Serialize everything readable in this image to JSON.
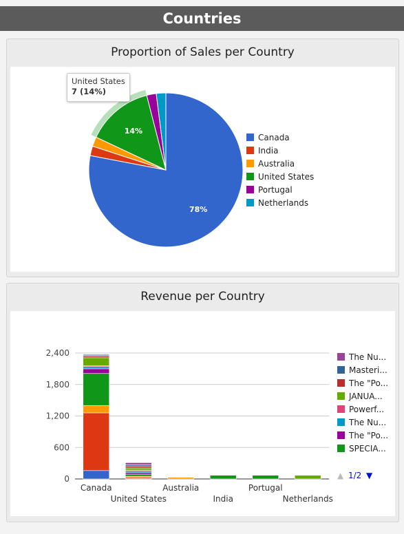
{
  "header": {
    "title": "Countries"
  },
  "sales_panel": {
    "title": "Proportion of Sales per Country",
    "tooltip": {
      "line1": "United States",
      "line2": "7 (14%)"
    }
  },
  "revenue_panel": {
    "title": "Revenue per Country",
    "legend_pager": {
      "up": "▲",
      "label": "1/2",
      "down": "▼"
    }
  },
  "chart_data": [
    {
      "type": "pie",
      "title": "Proportion of Sales per Country",
      "categories": [
        "Canada",
        "India",
        "Australia",
        "United States",
        "Portugal",
        "Netherlands"
      ],
      "values": [
        78,
        2,
        2,
        14,
        2,
        2
      ],
      "data_labels": [
        "78%",
        "",
        "",
        "14%",
        "",
        ""
      ],
      "colors": [
        "#3366cc",
        "#dc3912",
        "#ff9900",
        "#109618",
        "#990099",
        "#0099c6"
      ],
      "legend": "right",
      "highlighted": "United States"
    },
    {
      "type": "bar",
      "stacked": true,
      "title": "Revenue per Country",
      "categories": [
        "Canada",
        "United States",
        "Australia",
        "India",
        "Portugal",
        "Netherlands"
      ],
      "ylim": [
        0,
        2400
      ],
      "yticks": [
        {
          "value": 0,
          "label": "0"
        },
        {
          "value": 600,
          "label": "600"
        },
        {
          "value": 1200,
          "label": "1,200"
        },
        {
          "value": 1800,
          "label": "1,800"
        },
        {
          "value": 2400,
          "label": "2,400"
        }
      ],
      "grid": true,
      "legend": "right",
      "legend_entries": [
        {
          "label": "The Nu...",
          "color": "#994499"
        },
        {
          "label": "Masteri...",
          "color": "#316395"
        },
        {
          "label": "The \"Po...",
          "color": "#b82e2e"
        },
        {
          "label": "JANUA...",
          "color": "#66aa00"
        },
        {
          "label": "Powerf...",
          "color": "#dd4477"
        },
        {
          "label": "The Nu...",
          "color": "#0099c6"
        },
        {
          "label": "The \"Po...",
          "color": "#990099"
        },
        {
          "label": "SPECIA...",
          "color": "#109618"
        }
      ],
      "series": [
        {
          "color": "#3366cc",
          "values": [
            160,
            10,
            0,
            0,
            0,
            0
          ]
        },
        {
          "color": "#dc3912",
          "values": [
            1100,
            20,
            0,
            0,
            0,
            0
          ]
        },
        {
          "color": "#ff9900",
          "values": [
            140,
            20,
            30,
            0,
            0,
            0
          ]
        },
        {
          "color": "#109618",
          "values": [
            610,
            40,
            0,
            70,
            70,
            0
          ]
        },
        {
          "color": "#990099",
          "values": [
            90,
            30,
            0,
            0,
            0,
            0
          ]
        },
        {
          "color": "#0099c6",
          "values": [
            40,
            30,
            0,
            0,
            0,
            0
          ]
        },
        {
          "color": "#dd4477",
          "values": [
            20,
            20,
            0,
            0,
            0,
            0
          ]
        },
        {
          "color": "#66aa00",
          "values": [
            150,
            40,
            0,
            0,
            0,
            70
          ]
        },
        {
          "color": "#b82e2e",
          "values": [
            30,
            30,
            0,
            0,
            0,
            0
          ]
        },
        {
          "color": "#316395",
          "values": [
            20,
            30,
            0,
            0,
            0,
            0
          ]
        },
        {
          "color": "#994499",
          "values": [
            15,
            40,
            0,
            0,
            0,
            0
          ]
        }
      ]
    }
  ]
}
